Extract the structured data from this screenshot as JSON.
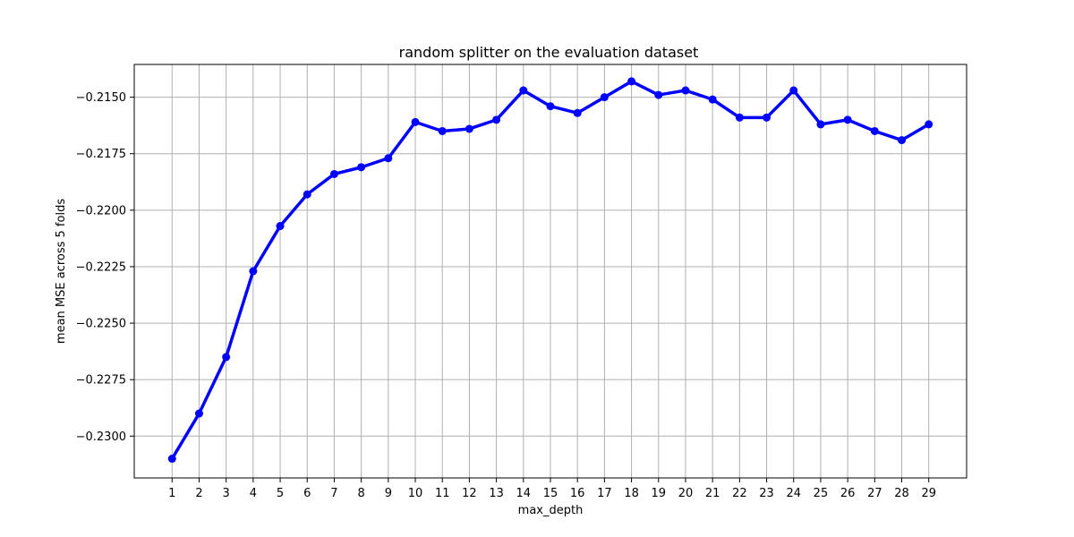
{
  "chart_data": {
    "type": "line",
    "title": "random splitter on the evaluation dataset",
    "xlabel": "max_depth",
    "ylabel": "mean MSE across 5 folds",
    "x": [
      1,
      2,
      3,
      4,
      5,
      6,
      7,
      8,
      9,
      10,
      11,
      12,
      13,
      14,
      15,
      16,
      17,
      18,
      19,
      20,
      21,
      22,
      23,
      24,
      25,
      26,
      27,
      28,
      29
    ],
    "series": [
      {
        "values": [
          -0.231,
          -0.229,
          -0.2265,
          -0.2227,
          -0.2207,
          -0.2193,
          -0.2184,
          -0.2181,
          -0.2177,
          -0.2161,
          -0.2165,
          -0.2164,
          -0.216,
          -0.2147,
          -0.2154,
          -0.2157,
          -0.215,
          -0.2143,
          -0.2149,
          -0.2147,
          -0.2151,
          -0.2159,
          -0.2159,
          -0.2147,
          -0.2162,
          -0.216,
          -0.2165,
          -0.2169,
          -0.2162
        ],
        "color": "#0000ff"
      }
    ],
    "xticks": [
      "1",
      "2",
      "3",
      "4",
      "5",
      "6",
      "7",
      "8",
      "9",
      "10",
      "11",
      "12",
      "13",
      "14",
      "15",
      "16",
      "17",
      "18",
      "19",
      "20",
      "21",
      "22",
      "23",
      "24",
      "25",
      "26",
      "27",
      "28",
      "29"
    ],
    "yticks": [
      {
        "value": -0.23,
        "label": "−0.2300"
      },
      {
        "value": -0.2275,
        "label": "−0.2275"
      },
      {
        "value": -0.225,
        "label": "−0.2250"
      },
      {
        "value": -0.2225,
        "label": "−0.2225"
      },
      {
        "value": -0.22,
        "label": "−0.2200"
      },
      {
        "value": -0.2175,
        "label": "−0.2175"
      },
      {
        "value": -0.215,
        "label": "−0.2150"
      }
    ],
    "xlim": [
      -0.4,
      30.4
    ],
    "ylim": [
      -0.23185,
      -0.21355
    ],
    "grid": true,
    "marker": "circle"
  }
}
